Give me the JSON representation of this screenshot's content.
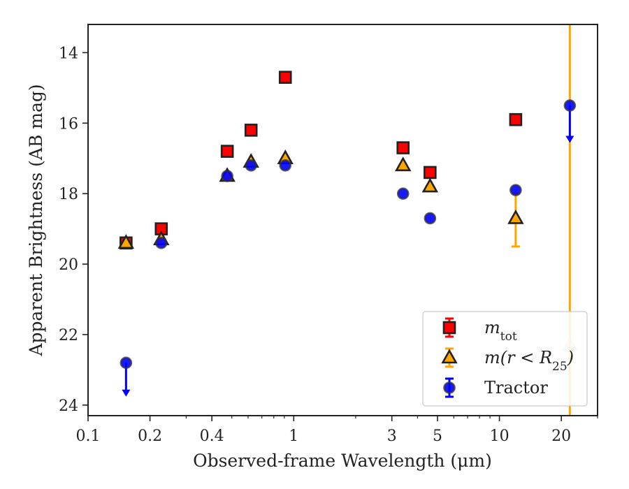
{
  "chart_data": {
    "type": "scatter",
    "title": "",
    "xlabel": "Observed-frame Wavelength (μm)",
    "ylabel": "Apparent Brightness (AB mag)",
    "x_scale": "log",
    "xlim": [
      0.1,
      30
    ],
    "ylim": [
      24.3,
      13.2
    ],
    "y_inverted": true,
    "x_ticks": [
      {
        "value": 0.1,
        "label": "0.1"
      },
      {
        "value": 0.2,
        "label": "0.2"
      },
      {
        "value": 0.4,
        "label": "0.4"
      },
      {
        "value": 1,
        "label": "1"
      },
      {
        "value": 3,
        "label": "3"
      },
      {
        "value": 5,
        "label": "5"
      },
      {
        "value": 10,
        "label": "10"
      },
      {
        "value": 20,
        "label": "20"
      }
    ],
    "x_minor_ticks": [
      0.3,
      0.5,
      0.6,
      0.7,
      0.8,
      0.9,
      2,
      4,
      6,
      7,
      8,
      9,
      30
    ],
    "y_ticks": [
      {
        "value": 14,
        "label": "14"
      },
      {
        "value": 16,
        "label": "16"
      },
      {
        "value": 18,
        "label": "18"
      },
      {
        "value": 20,
        "label": "20"
      },
      {
        "value": 22,
        "label": "22"
      },
      {
        "value": 24,
        "label": "24"
      }
    ],
    "grid": false,
    "legend_position": "lower-right",
    "series": [
      {
        "name": "m_tot",
        "legend_main": "m",
        "legend_sub": "tot",
        "legend_tail": "",
        "marker": "square",
        "face_color": "#ff0000",
        "edge_color": "#222222",
        "error_color": "#ff0000",
        "points": [
          {
            "x": 0.153,
            "y": 19.4
          },
          {
            "x": 0.227,
            "y": 19.0
          },
          {
            "x": 0.475,
            "y": 16.8
          },
          {
            "x": 0.62,
            "y": 16.2
          },
          {
            "x": 0.91,
            "y": 14.7
          },
          {
            "x": 3.4,
            "y": 16.7
          },
          {
            "x": 4.6,
            "y": 17.4
          },
          {
            "x": 12.0,
            "y": 15.9
          }
        ]
      },
      {
        "name": "m(r<R_25)",
        "legend_main": "m(r < R",
        "legend_sub": "25",
        "legend_tail": ")",
        "marker": "triangle",
        "face_color": "#ffa500",
        "edge_color": "#222222",
        "error_color": "#ffa500",
        "points": [
          {
            "x": 0.153,
            "y": 19.4
          },
          {
            "x": 0.227,
            "y": 19.3
          },
          {
            "x": 0.475,
            "y": 17.5
          },
          {
            "x": 0.62,
            "y": 17.1
          },
          {
            "x": 0.91,
            "y": 17.0
          },
          {
            "x": 3.4,
            "y": 17.2
          },
          {
            "x": 4.6,
            "y": 17.8
          },
          {
            "x": 12.0,
            "y": 18.7,
            "yerr": [
              18.0,
              19.5
            ]
          },
          {
            "x": 22.0,
            "y": 22.3,
            "yerr": [
              13.2,
              24.3
            ]
          }
        ]
      },
      {
        "name": "Tractor",
        "legend_main": "Tractor",
        "legend_sub": "",
        "legend_tail": "",
        "marker": "circle",
        "face_color": "#0000ff",
        "edge_color": "#333333",
        "error_color": "#0000ff",
        "points": [
          {
            "x": 0.153,
            "y": 22.8,
            "upper_limit": true,
            "arrow_to": 23.7
          },
          {
            "x": 0.227,
            "y": 19.4
          },
          {
            "x": 0.475,
            "y": 17.5
          },
          {
            "x": 0.62,
            "y": 17.2
          },
          {
            "x": 0.91,
            "y": 17.2
          },
          {
            "x": 3.4,
            "y": 18.0
          },
          {
            "x": 4.6,
            "y": 18.7
          },
          {
            "x": 12.0,
            "y": 17.9
          },
          {
            "x": 22.0,
            "y": 15.5,
            "upper_limit": true,
            "arrow_to": 16.5
          }
        ]
      }
    ]
  }
}
